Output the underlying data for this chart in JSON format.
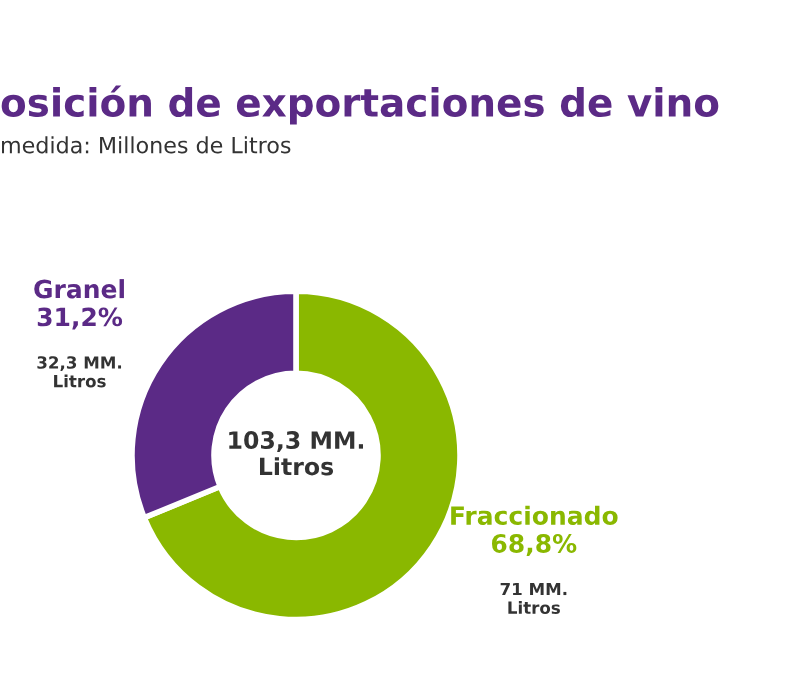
{
  "chart_data": {
    "type": "donut",
    "title": "osición de exportaciones de vino",
    "subtitle": "medida: Millones de Litros",
    "categories": [
      "Fraccionado",
      "Granel"
    ],
    "values": [
      68.8,
      31.2
    ],
    "colors": [
      "#8ab800",
      "#5b2a86"
    ],
    "value_labels": [
      "68,8%",
      "31,2%"
    ],
    "annotations": [
      "71 MM.\nLitros",
      "32,3 MM.\nLitros",
      "103,3 MM.\nLitros"
    ]
  }
}
